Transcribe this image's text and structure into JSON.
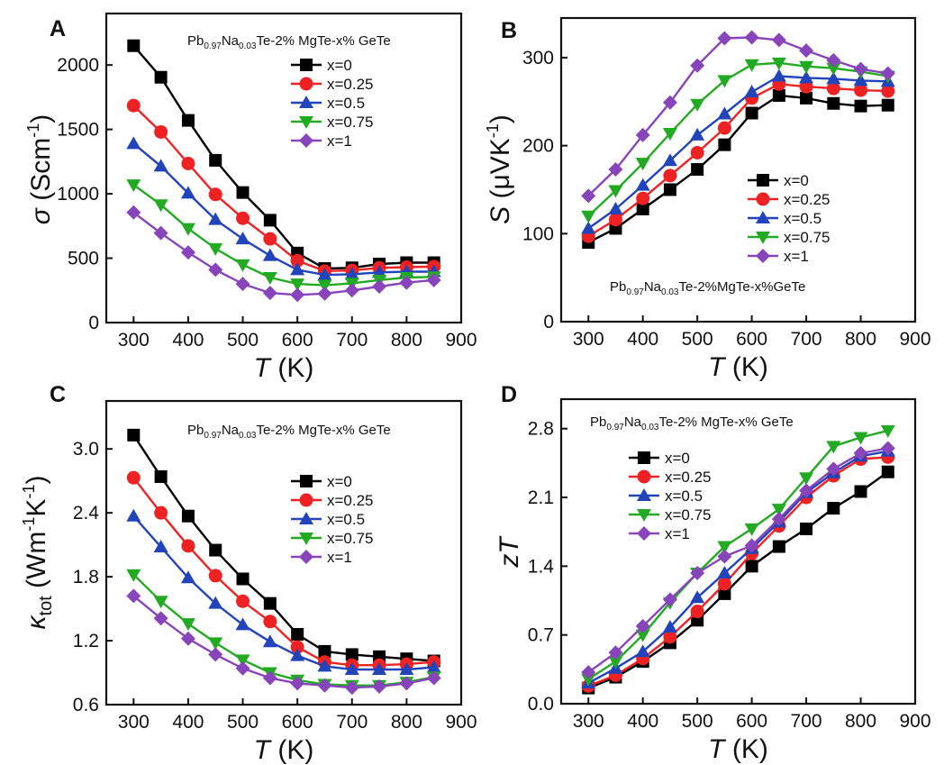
{
  "chart_data": [
    {
      "panel": "A",
      "type": "line",
      "formula": {
        "a": "Pb",
        "s1": "0.97",
        "b": "Na",
        "s2": "0.03",
        "c": "Te-2% MgTe-x% GeTe"
      },
      "ylabel": {
        "sym": "σ",
        "unit_pre": "(Scm",
        "unit_sup": "-1",
        "unit_post": ")"
      },
      "xlabel": {
        "sym": "T",
        "unit": "(K)"
      },
      "xlim": [
        250,
        900
      ],
      "ylim": [
        0,
        2400
      ],
      "xticks": [
        300,
        400,
        500,
        600,
        700,
        800,
        900
      ],
      "yticks": [
        0,
        500,
        1000,
        1500,
        2000
      ],
      "yprec": 0,
      "legend_pos": "top-right",
      "x": [
        300,
        350,
        400,
        450,
        500,
        550,
        600,
        650,
        700,
        750,
        800,
        850
      ],
      "series": [
        {
          "name": "x=0",
          "color": "#000000",
          "marker": "square",
          "values": [
            2150,
            1905,
            1570,
            1260,
            1010,
            795,
            540,
            420,
            425,
            455,
            465,
            465
          ]
        },
        {
          "name": "x=0.25",
          "color": "#ee2222",
          "marker": "circle",
          "values": [
            1685,
            1480,
            1235,
            995,
            810,
            650,
            480,
            400,
            405,
            425,
            430,
            435
          ]
        },
        {
          "name": "x=0.5",
          "color": "#2244bb",
          "marker": "triangle-up",
          "values": [
            1390,
            1215,
            1005,
            800,
            650,
            520,
            410,
            370,
            375,
            390,
            395,
            395
          ]
        },
        {
          "name": "x=0.75",
          "color": "#22aa22",
          "marker": "triangle-down",
          "values": [
            1070,
            915,
            730,
            575,
            450,
            350,
            300,
            290,
            305,
            330,
            350,
            355
          ]
        },
        {
          "name": "x=1",
          "color": "#8844bb",
          "marker": "diamond",
          "values": [
            855,
            695,
            545,
            410,
            300,
            230,
            215,
            225,
            250,
            280,
            310,
            330
          ]
        }
      ]
    },
    {
      "panel": "B",
      "type": "line",
      "formula": {
        "a": "Pb",
        "s1": "0.97",
        "b": "Na",
        "s2": "0.03",
        "c": "Te-2%MgTe-x%GeTe"
      },
      "ylabel": {
        "sym": "S",
        "unit_pre": "(μVK",
        "unit_sup": "-1",
        "unit_post": ")"
      },
      "xlabel": {
        "sym": "T",
        "unit": "(K)"
      },
      "xlim": [
        250,
        900
      ],
      "ylim": [
        0,
        345
      ],
      "xticks": [
        300,
        400,
        500,
        600,
        700,
        800,
        900
      ],
      "yticks": [
        0,
        100,
        200,
        300
      ],
      "yprec": 0,
      "legend_pos": "center-right",
      "x": [
        300,
        350,
        400,
        450,
        500,
        550,
        600,
        650,
        700,
        750,
        800,
        850
      ],
      "series": [
        {
          "name": "x=0",
          "color": "#000000",
          "marker": "square",
          "values": [
            90,
            106,
            128,
            150,
            173,
            201,
            237,
            257,
            254,
            248,
            245,
            246
          ]
        },
        {
          "name": "x=0.25",
          "color": "#ee2222",
          "marker": "circle",
          "values": [
            97,
            116,
            140,
            166,
            192,
            220,
            254,
            270,
            267,
            265,
            263,
            262
          ]
        },
        {
          "name": "x=0.5",
          "color": "#2244bb",
          "marker": "triangle-up",
          "values": [
            106,
            128,
            155,
            183,
            212,
            236,
            261,
            279,
            277,
            276,
            274,
            273
          ]
        },
        {
          "name": "x=0.75",
          "color": "#22aa22",
          "marker": "triangle-down",
          "values": [
            120,
            149,
            180,
            214,
            247,
            274,
            292,
            294,
            290,
            288,
            284,
            279
          ]
        },
        {
          "name": "x=1",
          "color": "#8844bb",
          "marker": "diamond",
          "values": [
            143,
            173,
            212,
            249,
            291,
            322,
            323,
            320,
            308,
            297,
            287,
            282
          ]
        }
      ]
    },
    {
      "panel": "C",
      "type": "line",
      "formula": {
        "a": "Pb",
        "s1": "0.97",
        "b": "Na",
        "s2": "0.03",
        "c": "Te-2% MgTe-x% GeTe"
      },
      "ylabel": {
        "sym": "κ",
        "sym_sub": "tot",
        "unit_pre": "(Wm",
        "unit_sup": "-1",
        "unit_mid": "K",
        "unit_sup2": "-1",
        "unit_post": ")"
      },
      "xlabel": {
        "sym": "T",
        "unit": "(K)"
      },
      "xlim": [
        250,
        900
      ],
      "ylim": [
        0.6,
        3.45
      ],
      "xticks": [
        300,
        400,
        500,
        600,
        700,
        800,
        900
      ],
      "yticks": [
        0.6,
        1.2,
        1.8,
        2.4,
        3.0
      ],
      "yprec": 1,
      "legend_pos": "center-right",
      "x": [
        300,
        350,
        400,
        450,
        500,
        550,
        600,
        650,
        700,
        750,
        800,
        850
      ],
      "series": [
        {
          "name": "x=0",
          "color": "#000000",
          "marker": "square",
          "values": [
            3.13,
            2.74,
            2.37,
            2.05,
            1.78,
            1.55,
            1.26,
            1.1,
            1.07,
            1.05,
            1.03,
            1.01
          ]
        },
        {
          "name": "x=0.25",
          "color": "#ee2222",
          "marker": "circle",
          "values": [
            2.73,
            2.4,
            2.09,
            1.81,
            1.57,
            1.38,
            1.14,
            1.0,
            0.97,
            0.97,
            0.98,
            1.0
          ]
        },
        {
          "name": "x=0.5",
          "color": "#2244bb",
          "marker": "triangle-up",
          "values": [
            2.37,
            2.08,
            1.79,
            1.55,
            1.35,
            1.19,
            1.06,
            0.96,
            0.93,
            0.93,
            0.93,
            0.95
          ]
        },
        {
          "name": "x=0.75",
          "color": "#22aa22",
          "marker": "triangle-down",
          "values": [
            1.82,
            1.57,
            1.36,
            1.18,
            1.02,
            0.9,
            0.83,
            0.79,
            0.78,
            0.78,
            0.81,
            0.86
          ]
        },
        {
          "name": "x=1",
          "color": "#8844bb",
          "marker": "diamond",
          "values": [
            1.62,
            1.41,
            1.22,
            1.07,
            0.94,
            0.85,
            0.8,
            0.78,
            0.76,
            0.77,
            0.8,
            0.85
          ]
        }
      ]
    },
    {
      "panel": "D",
      "type": "line",
      "formula": {
        "a": "Pb",
        "s1": "0.97",
        "b": "Na",
        "s2": "0.03",
        "c": "Te-2% MgTe-x% GeTe"
      },
      "ylabel": {
        "sym": "zT"
      },
      "xlabel": {
        "sym": "T",
        "unit": "(K)"
      },
      "xlim": [
        250,
        900
      ],
      "ylim": [
        0,
        3.1
      ],
      "xticks": [
        300,
        400,
        500,
        600,
        700,
        800,
        900
      ],
      "yticks": [
        0.0,
        0.7,
        1.4,
        2.1,
        2.8
      ],
      "yprec": 1,
      "legend_pos": "top-left",
      "x": [
        300,
        350,
        400,
        450,
        500,
        550,
        600,
        650,
        700,
        750,
        800,
        850
      ],
      "series": [
        {
          "name": "x=0",
          "color": "#000000",
          "marker": "square",
          "values": [
            0.16,
            0.27,
            0.43,
            0.62,
            0.85,
            1.12,
            1.4,
            1.6,
            1.78,
            1.99,
            2.16,
            2.36
          ]
        },
        {
          "name": "x=0.25",
          "color": "#ee2222",
          "marker": "circle",
          "values": [
            0.18,
            0.29,
            0.46,
            0.68,
            0.94,
            1.22,
            1.53,
            1.81,
            2.1,
            2.32,
            2.49,
            2.51
          ]
        },
        {
          "name": "x=0.5",
          "color": "#2244bb",
          "marker": "triangle-up",
          "values": [
            0.21,
            0.36,
            0.53,
            0.78,
            1.08,
            1.33,
            1.58,
            1.85,
            2.15,
            2.35,
            2.52,
            2.57
          ]
        },
        {
          "name": "x=0.75",
          "color": "#22aa22",
          "marker": "triangle-down",
          "values": [
            0.25,
            0.43,
            0.7,
            1.03,
            1.33,
            1.6,
            1.78,
            1.98,
            2.3,
            2.62,
            2.71,
            2.78
          ]
        },
        {
          "name": "x=1",
          "color": "#8844bb",
          "marker": "diamond",
          "values": [
            0.32,
            0.52,
            0.79,
            1.06,
            1.33,
            1.5,
            1.61,
            1.88,
            2.17,
            2.39,
            2.55,
            2.6
          ]
        }
      ]
    }
  ]
}
